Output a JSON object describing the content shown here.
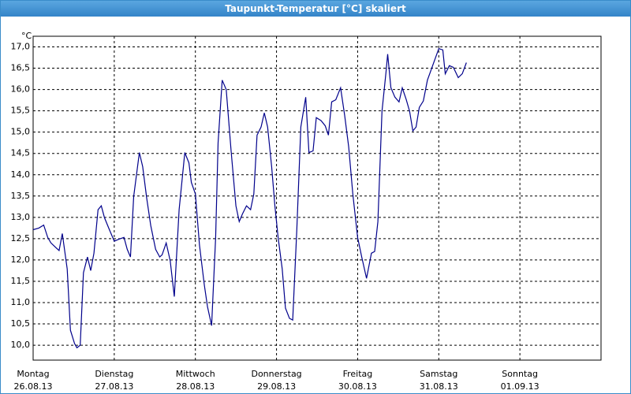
{
  "window": {
    "title": "Taupunkt-Temperatur [°C] skaliert"
  },
  "chart_data": {
    "type": "line",
    "y_unit": "°C",
    "xlim": [
      0,
      7
    ],
    "ylim": [
      9.65,
      17.25
    ],
    "grid": true,
    "xticks": [
      {
        "value": 0,
        "label": "Montag",
        "date": "26.08.13"
      },
      {
        "value": 1,
        "label": "Dienstag",
        "date": "27.08.13"
      },
      {
        "value": 2,
        "label": "Mittwoch",
        "date": "28.08.13"
      },
      {
        "value": 3,
        "label": "Donnerstag",
        "date": "29.08.13"
      },
      {
        "value": 4,
        "label": "Freitag",
        "date": "30.08.13"
      },
      {
        "value": 5,
        "label": "Samstag",
        "date": "31.08.13"
      },
      {
        "value": 6,
        "label": "Sonntag",
        "date": "01.09.13"
      }
    ],
    "yticks": [
      {
        "value": 10.0,
        "label": "10,0"
      },
      {
        "value": 10.5,
        "label": "10,5"
      },
      {
        "value": 11.0,
        "label": "11,0"
      },
      {
        "value": 11.5,
        "label": "11,5"
      },
      {
        "value": 12.0,
        "label": "12,0"
      },
      {
        "value": 12.5,
        "label": "12,5"
      },
      {
        "value": 13.0,
        "label": "13,0"
      },
      {
        "value": 13.5,
        "label": "13,5"
      },
      {
        "value": 14.0,
        "label": "14,0"
      },
      {
        "value": 14.5,
        "label": "14,5"
      },
      {
        "value": 15.0,
        "label": "15,0"
      },
      {
        "value": 15.5,
        "label": "15,5"
      },
      {
        "value": 16.0,
        "label": "16,0"
      },
      {
        "value": 16.5,
        "label": "16,5"
      },
      {
        "value": 17.0,
        "label": "17,0"
      }
    ],
    "series": [
      {
        "color": "#00008b",
        "x": [
          0,
          0.07,
          0.13,
          0.18,
          0.22,
          0.28,
          0.32,
          0.36,
          0.42,
          0.46,
          0.51,
          0.54,
          0.58,
          0.62,
          0.67,
          0.71,
          0.75,
          0.8,
          0.84,
          0.88,
          0.94,
          1.0,
          1.06,
          1.12,
          1.16,
          1.2,
          1.24,
          1.31,
          1.35,
          1.4,
          1.45,
          1.51,
          1.56,
          1.59,
          1.64,
          1.69,
          1.74,
          1.8,
          1.87,
          1.92,
          1.95,
          2.0,
          2.05,
          2.11,
          2.15,
          2.2,
          2.25,
          2.28,
          2.33,
          2.38,
          2.44,
          2.5,
          2.54,
          2.58,
          2.63,
          2.68,
          2.72,
          2.76,
          2.81,
          2.85,
          2.89,
          2.94,
          2.98,
          3.02,
          3.07,
          3.11,
          3.16,
          3.2,
          3.25,
          3.3,
          3.36,
          3.4,
          3.45,
          3.49,
          3.55,
          3.6,
          3.64,
          3.68,
          3.73,
          3.79,
          3.84,
          3.89,
          3.94,
          4.0,
          4.05,
          4.11,
          4.17,
          4.21,
          4.25,
          4.3,
          4.35,
          4.37,
          4.41,
          4.46,
          4.51,
          4.55,
          4.6,
          4.64,
          4.68,
          4.72,
          4.76,
          4.81,
          4.86,
          4.93,
          5.0,
          5.05,
          5.08,
          5.13,
          5.18,
          5.24,
          5.29,
          5.34
        ],
        "values": [
          12.71,
          12.75,
          12.82,
          12.53,
          12.4,
          12.29,
          12.22,
          12.62,
          11.79,
          10.35,
          10.04,
          9.94,
          10.0,
          11.7,
          12.07,
          11.75,
          12.16,
          13.18,
          13.27,
          12.99,
          12.71,
          12.44,
          12.49,
          12.53,
          12.25,
          12.07,
          13.49,
          14.52,
          14.19,
          13.45,
          12.81,
          12.25,
          12.07,
          12.12,
          12.4,
          11.98,
          11.14,
          13.18,
          14.52,
          14.28,
          13.82,
          13.55,
          12.35,
          11.42,
          10.9,
          10.46,
          12.53,
          14.75,
          16.22,
          16.0,
          14.56,
          13.27,
          12.9,
          13.08,
          13.27,
          13.18,
          13.55,
          14.93,
          15.12,
          15.45,
          15.12,
          14.19,
          13.27,
          12.53,
          11.79,
          10.87,
          10.63,
          10.59,
          12.71,
          15.12,
          15.82,
          14.52,
          14.56,
          15.34,
          15.27,
          15.15,
          14.93,
          15.71,
          15.76,
          16.04,
          15.39,
          14.65,
          13.55,
          12.53,
          12.07,
          11.57,
          12.16,
          12.2,
          12.9,
          15.49,
          16.41,
          16.83,
          16.04,
          15.82,
          15.71,
          16.04,
          15.76,
          15.49,
          15.03,
          15.12,
          15.58,
          15.73,
          16.22,
          16.59,
          16.96,
          16.93,
          16.37,
          16.56,
          16.52,
          16.28,
          16.37,
          16.63
        ]
      }
    ]
  }
}
